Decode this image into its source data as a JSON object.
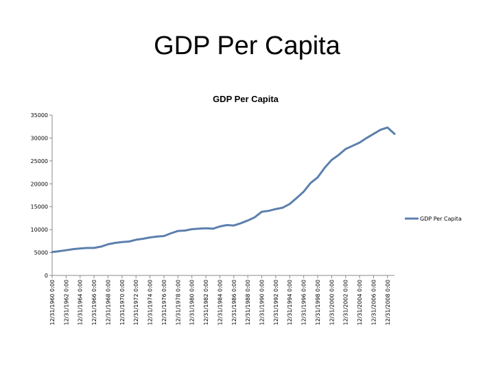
{
  "slide": {
    "title": "GDP Per Capita"
  },
  "chart_data": {
    "type": "line",
    "title": "GDP Per Capita",
    "xlabel": "",
    "ylabel": "",
    "ylim": [
      0,
      35000
    ],
    "yticks": [
      0,
      5000,
      10000,
      15000,
      20000,
      25000,
      30000,
      35000
    ],
    "grid": false,
    "legend_position": "right",
    "series_color": "#5b7fad",
    "x_tick_labels": [
      "12/31/1960 0:00",
      "12/31/1962 0:00",
      "12/31/1964 0:00",
      "12/31/1966 0:00",
      "12/31/1968 0:00",
      "12/31/1970 0:00",
      "12/31/1972 0:00",
      "12/31/1974 0:00",
      "12/31/1976 0:00",
      "12/31/1978 0:00",
      "12/31/1980 0:00",
      "12/31/1982 0:00",
      "12/31/1984 0:00",
      "12/31/1986 0:00",
      "12/31/1988 0:00",
      "12/31/1990 0:00",
      "12/31/1992 0:00",
      "12/31/1994 0:00",
      "12/31/1996 0:00",
      "12/31/1998 0:00",
      "12/31/2000 0:00",
      "12/31/2002 0:00",
      "12/31/2004 0:00",
      "12/31/2006 0:00",
      "12/31/2008 0:00"
    ],
    "x": [
      1960,
      1961,
      1962,
      1963,
      1964,
      1965,
      1966,
      1967,
      1968,
      1969,
      1970,
      1971,
      1972,
      1973,
      1974,
      1975,
      1976,
      1977,
      1978,
      1979,
      1980,
      1981,
      1982,
      1983,
      1984,
      1985,
      1986,
      1987,
      1988,
      1989,
      1990,
      1991,
      1992,
      1993,
      1994,
      1995,
      1996,
      1997,
      1998,
      1999,
      2000,
      2001,
      2002,
      2003,
      2004,
      2005,
      2006,
      2007,
      2008,
      2009
    ],
    "series": [
      {
        "name": "GDP Per Capita",
        "values": [
          5100,
          5300,
          5500,
          5750,
          5900,
          6000,
          6000,
          6300,
          6800,
          7100,
          7300,
          7400,
          7800,
          8000,
          8300,
          8500,
          8600,
          9200,
          9700,
          9800,
          10100,
          10200,
          10300,
          10200,
          10700,
          11000,
          10900,
          11400,
          12000,
          12700,
          13900,
          14100,
          14500,
          14800,
          15600,
          16900,
          18300,
          20200,
          21400,
          23500,
          25200,
          26300,
          27600,
          28300,
          29000,
          30000,
          30900,
          31800,
          32300,
          30900
        ]
      }
    ]
  }
}
